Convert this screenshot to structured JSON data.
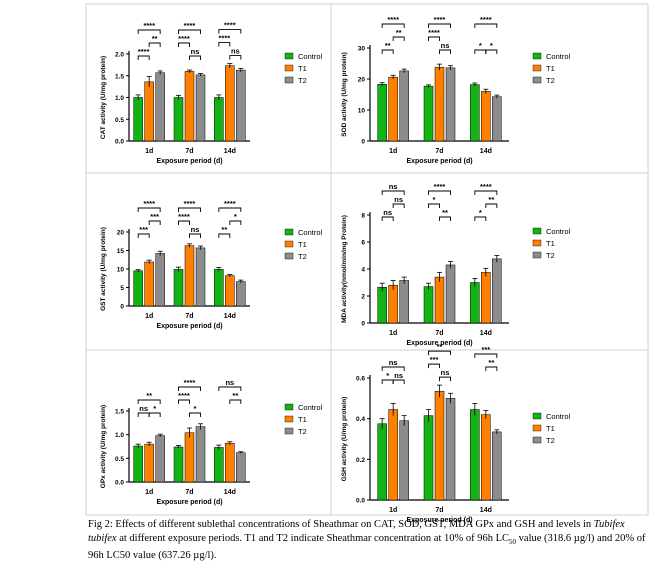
{
  "figure": {
    "legend_labels": [
      "Control",
      "T1",
      "T2"
    ],
    "colors": {
      "Control": "#12b312",
      "T1": "#ff7f00",
      "T2": "#8c8c8c"
    },
    "caption": {
      "lead": "Fig 2: Effects of different sublethal concentrations of Sheathmar on CAT, SOD, GST, MDA GPx and GSH and levels in ",
      "species": "Tubifex tubifex",
      "tail": " at different exposure periods. T1 and T2 indicate Sheathmar concentration at 10% of 96h LC",
      "subscript": "50",
      "tail2": " value (318.6 µg/l) and 20% of 96h LC50 value (637.26 µg/l)."
    }
  },
  "chart_data": [
    {
      "type": "bar",
      "title": "",
      "xlabel": "Exposure period (d)",
      "ylabel": "CAT activity (U/mg protein)",
      "categories": [
        "1d",
        "7d",
        "14d"
      ],
      "ylim": [
        0,
        2.0
      ],
      "yticks": [
        0.0,
        0.5,
        1.0,
        1.5,
        2.0
      ],
      "tick_decimals": 1,
      "series": [
        {
          "name": "Control",
          "values": [
            1.0,
            1.0,
            1.0
          ],
          "errors": [
            0.06,
            0.05,
            0.06
          ]
        },
        {
          "name": "T1",
          "values": [
            1.36,
            1.6,
            1.73
          ],
          "errors": [
            0.12,
            0.03,
            0.05
          ]
        },
        {
          "name": "T2",
          "values": [
            1.57,
            1.52,
            1.63
          ],
          "errors": [
            0.04,
            0.03,
            0.04
          ]
        }
      ],
      "comparisons": [
        {
          "group": 0,
          "from": 0,
          "to": 2,
          "label": "****",
          "level": 3
        },
        {
          "group": 0,
          "from": 1,
          "to": 2,
          "label": "**",
          "level": 2
        },
        {
          "group": 0,
          "from": 0,
          "to": 1,
          "label": "****",
          "level": 1
        },
        {
          "group": 1,
          "from": 0,
          "to": 2,
          "label": "****",
          "level": 3
        },
        {
          "group": 1,
          "from": 1,
          "to": 2,
          "label": "ns",
          "level": 1
        },
        {
          "group": 1,
          "from": 0,
          "to": 1,
          "label": "****",
          "level": 2
        },
        {
          "group": 2,
          "from": 0,
          "to": 2,
          "label": "****",
          "level": 3
        },
        {
          "group": 2,
          "from": 1,
          "to": 2,
          "label": "ns",
          "level": 1
        },
        {
          "group": 2,
          "from": 0,
          "to": 1,
          "label": "****",
          "level": 2
        }
      ]
    },
    {
      "type": "bar",
      "title": "",
      "xlabel": "Exposure period (d)",
      "ylabel": "SOD activity (U/mg protein)",
      "categories": [
        "1d",
        "7d",
        "14d"
      ],
      "ylim": [
        0,
        30
      ],
      "yticks": [
        0,
        10,
        20,
        30
      ],
      "tick_decimals": 0,
      "series": [
        {
          "name": "Control",
          "values": [
            18.3,
            17.7,
            18.2
          ],
          "errors": [
            0.5,
            0.4,
            0.5
          ]
        },
        {
          "name": "T1",
          "values": [
            20.6,
            23.8,
            16.0
          ],
          "errors": [
            0.6,
            1.0,
            0.7
          ]
        },
        {
          "name": "T2",
          "values": [
            22.6,
            23.6,
            14.3
          ],
          "errors": [
            0.6,
            0.7,
            0.5
          ]
        }
      ],
      "comparisons": [
        {
          "group": 0,
          "from": 0,
          "to": 2,
          "label": "****",
          "level": 3
        },
        {
          "group": 0,
          "from": 1,
          "to": 2,
          "label": "**",
          "level": 2
        },
        {
          "group": 0,
          "from": 0,
          "to": 1,
          "label": "**",
          "level": 1
        },
        {
          "group": 1,
          "from": 0,
          "to": 2,
          "label": "****",
          "level": 3
        },
        {
          "group": 1,
          "from": 1,
          "to": 2,
          "label": "ns",
          "level": 1
        },
        {
          "group": 1,
          "from": 0,
          "to": 1,
          "label": "****",
          "level": 2
        },
        {
          "group": 2,
          "from": 0,
          "to": 2,
          "label": "****",
          "level": 3
        },
        {
          "group": 2,
          "from": 0,
          "to": 1,
          "label": "*",
          "level": 1
        },
        {
          "group": 2,
          "from": 1,
          "to": 2,
          "label": "*",
          "level": 1
        }
      ]
    },
    {
      "type": "bar",
      "title": "",
      "xlabel": "Exposure period (d)",
      "ylabel": "GST activity (U/mg protein)",
      "categories": [
        "1d",
        "7d",
        "14d"
      ],
      "ylim": [
        0,
        20
      ],
      "yticks": [
        0,
        5,
        10,
        15,
        20
      ],
      "tick_decimals": 0,
      "series": [
        {
          "name": "Control",
          "values": [
            9.5,
            9.9,
            9.9
          ],
          "errors": [
            0.3,
            0.6,
            0.5
          ]
        },
        {
          "name": "T1",
          "values": [
            11.9,
            16.3,
            8.2
          ],
          "errors": [
            0.5,
            0.5,
            0.3
          ]
        },
        {
          "name": "T2",
          "values": [
            14.2,
            15.7,
            6.6
          ],
          "errors": [
            0.6,
            0.5,
            0.4
          ]
        }
      ],
      "comparisons": [
        {
          "group": 0,
          "from": 0,
          "to": 2,
          "label": "****",
          "level": 3
        },
        {
          "group": 0,
          "from": 1,
          "to": 2,
          "label": "***",
          "level": 2
        },
        {
          "group": 0,
          "from": 0,
          "to": 1,
          "label": "***",
          "level": 1
        },
        {
          "group": 1,
          "from": 0,
          "to": 2,
          "label": "****",
          "level": 3
        },
        {
          "group": 1,
          "from": 1,
          "to": 2,
          "label": "ns",
          "level": 1
        },
        {
          "group": 1,
          "from": 0,
          "to": 1,
          "label": "****",
          "level": 2
        },
        {
          "group": 2,
          "from": 0,
          "to": 2,
          "label": "****",
          "level": 3
        },
        {
          "group": 2,
          "from": 1,
          "to": 2,
          "label": "*",
          "level": 2
        },
        {
          "group": 2,
          "from": 0,
          "to": 1,
          "label": "**",
          "level": 1
        }
      ]
    },
    {
      "type": "bar",
      "title": "",
      "xlabel": "Exposure period (d)",
      "ylabel": "MDA activity(nmol/min/mg Protein)",
      "categories": [
        "1d",
        "7d",
        "14d"
      ],
      "ylim": [
        0,
        8
      ],
      "yticks": [
        0,
        2,
        4,
        6,
        8
      ],
      "tick_decimals": 0,
      "series": [
        {
          "name": "Control",
          "values": [
            2.65,
            2.7,
            3.0
          ],
          "errors": [
            0.3,
            0.25,
            0.3
          ]
        },
        {
          "name": "T1",
          "values": [
            2.8,
            3.4,
            3.75
          ],
          "errors": [
            0.35,
            0.35,
            0.3
          ]
        },
        {
          "name": "T2",
          "values": [
            3.15,
            4.3,
            4.75
          ],
          "errors": [
            0.25,
            0.25,
            0.25
          ]
        }
      ],
      "comparisons": [
        {
          "group": 0,
          "from": 0,
          "to": 2,
          "label": "ns",
          "level": 3
        },
        {
          "group": 0,
          "from": 1,
          "to": 2,
          "label": "ns",
          "level": 2
        },
        {
          "group": 0,
          "from": 0,
          "to": 1,
          "label": "ns",
          "level": 1
        },
        {
          "group": 1,
          "from": 0,
          "to": 2,
          "label": "****",
          "level": 3
        },
        {
          "group": 1,
          "from": 1,
          "to": 2,
          "label": "**",
          "level": 1
        },
        {
          "group": 1,
          "from": 0,
          "to": 1,
          "label": "*",
          "level": 2
        },
        {
          "group": 2,
          "from": 0,
          "to": 2,
          "label": "****",
          "level": 3
        },
        {
          "group": 2,
          "from": 1,
          "to": 2,
          "label": "**",
          "level": 2
        },
        {
          "group": 2,
          "from": 0,
          "to": 1,
          "label": "*",
          "level": 1
        }
      ]
    },
    {
      "type": "bar",
      "title": "",
      "xlabel": "Exposure period (d)",
      "ylabel": "GPx activity (U/mg protein)",
      "categories": [
        "1d",
        "7d",
        "14d"
      ],
      "ylim": [
        0,
        1.5
      ],
      "yticks": [
        0.0,
        0.5,
        1.0,
        1.5
      ],
      "tick_decimals": 1,
      "series": [
        {
          "name": "Control",
          "values": [
            0.76,
            0.74,
            0.73
          ],
          "errors": [
            0.04,
            0.03,
            0.05
          ]
        },
        {
          "name": "T1",
          "values": [
            0.8,
            1.04,
            0.82
          ],
          "errors": [
            0.04,
            0.1,
            0.03
          ]
        },
        {
          "name": "T2",
          "values": [
            0.98,
            1.17,
            0.62
          ],
          "errors": [
            0.03,
            0.06,
            0.02
          ]
        }
      ],
      "comparisons": [
        {
          "group": 0,
          "from": 0,
          "to": 2,
          "label": "**",
          "level": 2
        },
        {
          "group": 0,
          "from": 1,
          "to": 2,
          "label": "*",
          "level": 1
        },
        {
          "group": 0,
          "from": 0,
          "to": 1,
          "label": "ns",
          "level": 1
        },
        {
          "group": 1,
          "from": 0,
          "to": 2,
          "label": "****",
          "level": 3
        },
        {
          "group": 1,
          "from": 1,
          "to": 2,
          "label": "*",
          "level": 1
        },
        {
          "group": 1,
          "from": 0,
          "to": 1,
          "label": "****",
          "level": 2
        },
        {
          "group": 2,
          "from": 0,
          "to": 2,
          "label": "ns",
          "level": 3
        },
        {
          "group": 2,
          "from": 1,
          "to": 2,
          "label": "**",
          "level": 2
        }
      ]
    },
    {
      "type": "bar",
      "title": "",
      "xlabel": "Exposure period (d)",
      "ylabel": "GSH activity (U/mg protein)",
      "categories": [
        "1d",
        "7d",
        "14d"
      ],
      "ylim": [
        0,
        0.6
      ],
      "yticks": [
        0.0,
        0.2,
        0.4,
        0.6
      ],
      "tick_decimals": 1,
      "series": [
        {
          "name": "Control",
          "values": [
            0.375,
            0.415,
            0.445
          ],
          "errors": [
            0.025,
            0.03,
            0.03
          ]
        },
        {
          "name": "T1",
          "values": [
            0.445,
            0.535,
            0.42
          ],
          "errors": [
            0.03,
            0.03,
            0.02
          ]
        },
        {
          "name": "T2",
          "values": [
            0.39,
            0.5,
            0.335
          ],
          "errors": [
            0.025,
            0.025,
            0.01
          ]
        }
      ],
      "comparisons": [
        {
          "group": 0,
          "from": 0,
          "to": 2,
          "label": "ns",
          "level": 2
        },
        {
          "group": 0,
          "from": 0,
          "to": 1,
          "label": "*",
          "level": 1
        },
        {
          "group": 0,
          "from": 1,
          "to": 2,
          "label": "ns",
          "level": 1
        },
        {
          "group": 1,
          "from": 0,
          "to": 2,
          "label": "**",
          "level": 3
        },
        {
          "group": 1,
          "from": 0,
          "to": 1,
          "label": "***",
          "level": 2
        },
        {
          "group": 1,
          "from": 1,
          "to": 2,
          "label": "ns",
          "level": 1
        },
        {
          "group": 2,
          "from": 0,
          "to": 2,
          "label": "***",
          "level": 3
        },
        {
          "group": 2,
          "from": 1,
          "to": 2,
          "label": "**",
          "level": 2
        }
      ]
    }
  ]
}
